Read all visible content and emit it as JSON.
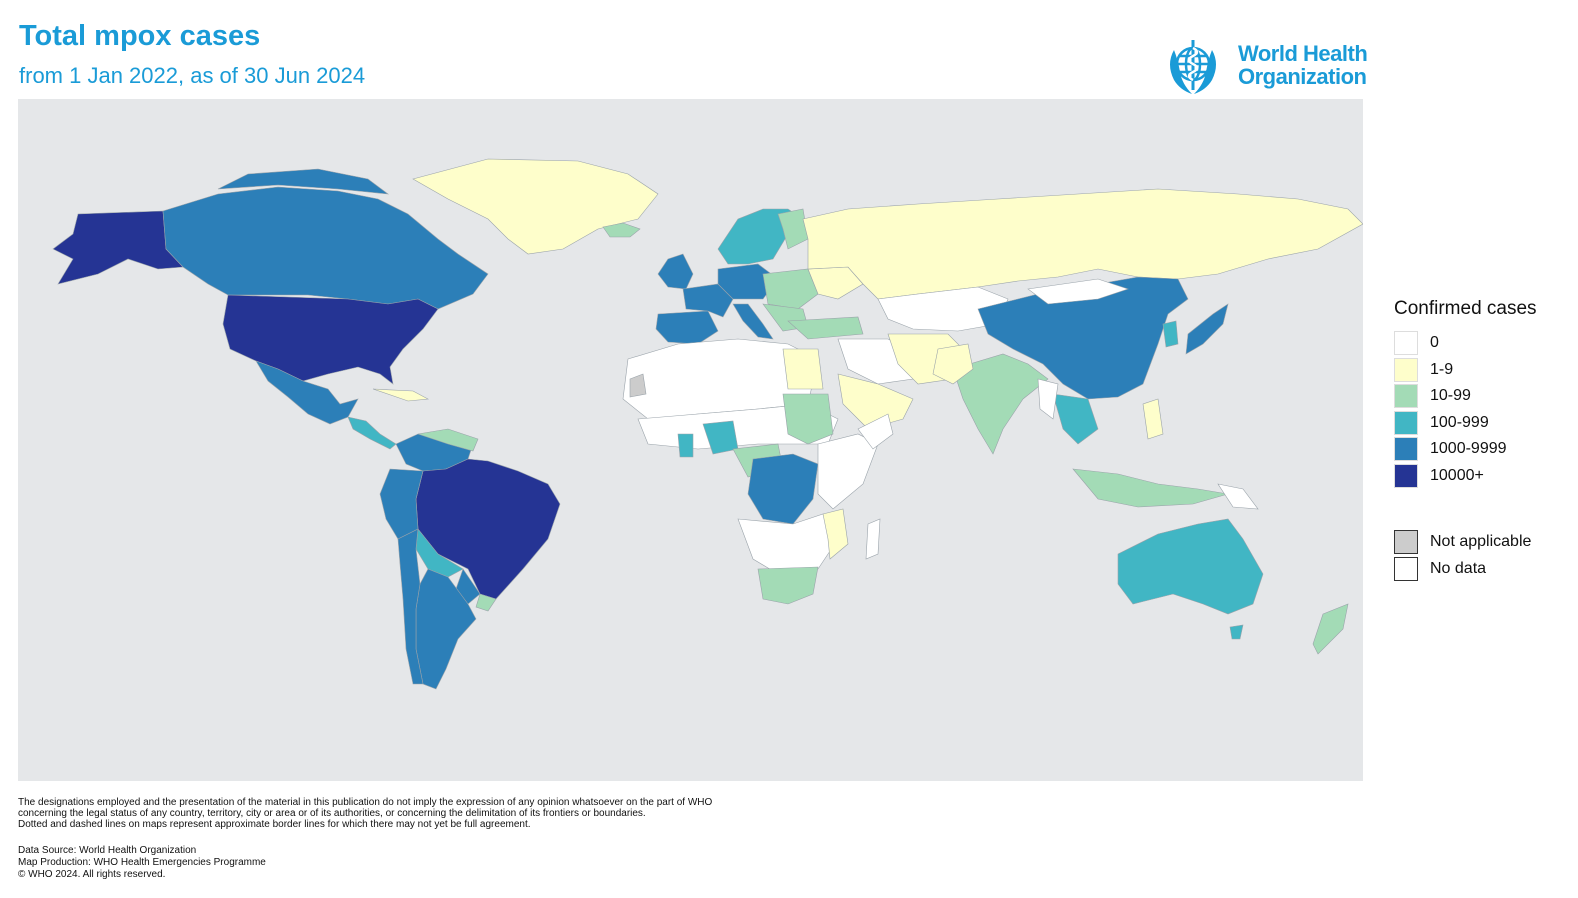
{
  "header": {
    "title": "Total mpox cases",
    "subtitle": "from 1 Jan 2022, as of 30 Jun 2024"
  },
  "logo": {
    "line1": "World Health",
    "line2": "Organization",
    "color": "#1a9bd7"
  },
  "map": {
    "background_color": "#e5e7e9",
    "palette": {
      "zero": "#ffffff",
      "1-9": "#fefecb",
      "10-99": "#a3dbb6",
      "100-999": "#41b6c4",
      "1000-9999": "#2c7fb8",
      "10000+": "#253494",
      "not_applicable": "#cccccc"
    }
  },
  "legend": {
    "title": "Confirmed cases",
    "items": [
      {
        "label": "0",
        "color": "#ffffff"
      },
      {
        "label": "1-9",
        "color": "#fefecb"
      },
      {
        "label": "10-99",
        "color": "#a3dbb6"
      },
      {
        "label": "100-999",
        "color": "#41b6c4"
      },
      {
        "label": "1000-9999",
        "color": "#2c7fb8"
      },
      {
        "label": "10000+",
        "color": "#253494"
      }
    ],
    "extra": [
      {
        "label": "Not applicable",
        "color": "#cccccc"
      },
      {
        "label": "No data",
        "color": "#ffffff"
      }
    ]
  },
  "footer": {
    "disclaimer": [
      "The designations employed and the presentation of the material in this publication do not imply the expression of any opinion whatsoever on the part of WHO",
      "concerning the legal status of any country, territory, city or area or of its authorities, or concerning the delimitation of its frontiers or boundaries.",
      "Dotted and dashed lines on maps represent approximate border lines for which there may not yet be full agreement."
    ],
    "data_source": "Data Source: World Health Organization",
    "map_production": "Map Production: WHO Health Emergencies Programme",
    "copyright": "© WHO 2024. All rights reserved."
  }
}
